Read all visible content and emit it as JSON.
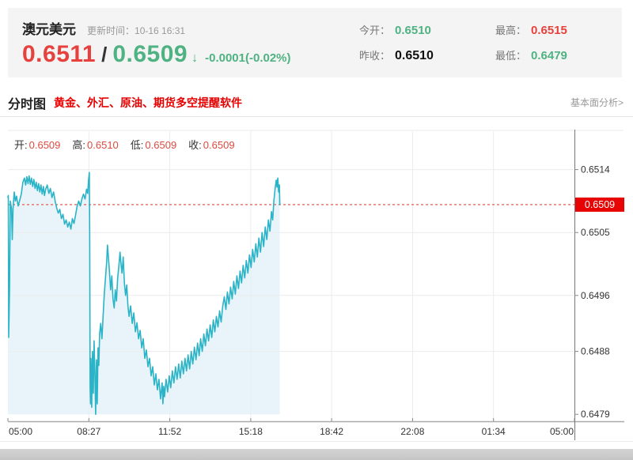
{
  "header": {
    "symbol": "澳元美元",
    "update_label": "更新时间：",
    "update_time": "10-16 16:31",
    "bid": "0.6511",
    "separator": "/",
    "ask": "0.6509",
    "arrow": "↓",
    "change": "-0.0001(-0.02%)",
    "stats": [
      {
        "label": "今开：",
        "value": "0.6510",
        "cls": "green"
      },
      {
        "label": "最高：",
        "value": "0.6515",
        "cls": "red"
      },
      {
        "label": "昨收：",
        "value": "0.6510",
        "cls": "dark"
      },
      {
        "label": "最低：",
        "value": "0.6479",
        "cls": "green"
      }
    ]
  },
  "section": {
    "title": "分时图",
    "promo": "黄金、外汇、原油、期货多空提醒软件",
    "link": "基本面分析>"
  },
  "chart_data": {
    "type": "line",
    "ohlc": {
      "o_label": "开:",
      "o": "0.6509",
      "h_label": "高:",
      "h": "0.6510",
      "l_label": "低:",
      "l": "0.6509",
      "c_label": "收:",
      "c": "0.6509"
    },
    "x_ticks": [
      "05:00",
      "08:27",
      "11:52",
      "15:18",
      "18:42",
      "22:08",
      "01:34",
      "05:00"
    ],
    "y_ticks": [
      0.6514,
      0.6505,
      0.6496,
      0.6488,
      0.6479
    ],
    "current_price": 0.6509,
    "time_span_minutes": 1440,
    "ylim": [
      0.6478,
      0.65195
    ],
    "y_axis_side": "right",
    "grid": true,
    "colors": {
      "line": "#2bb4c7",
      "fill": "#e8f4f9",
      "badge": "#e60404",
      "dashed": "#e85c50",
      "up_green": "#4fb282",
      "down_red": "#e6413d"
    },
    "series": [
      [
        0,
        0.651
      ],
      [
        1,
        0.65103
      ],
      [
        2,
        0.649
      ],
      [
        4,
        0.64965
      ],
      [
        6,
        0.65095
      ],
      [
        9,
        0.65085
      ],
      [
        11,
        0.6504
      ],
      [
        13,
        0.65085
      ],
      [
        16,
        0.65108
      ],
      [
        19,
        0.65095
      ],
      [
        22,
        0.65102
      ],
      [
        26,
        0.65088
      ],
      [
        30,
        0.65096
      ],
      [
        34,
        0.65105
      ],
      [
        38,
        0.65122
      ],
      [
        42,
        0.65128
      ],
      [
        45,
        0.65118
      ],
      [
        48,
        0.6513
      ],
      [
        51,
        0.6512
      ],
      [
        54,
        0.65131
      ],
      [
        57,
        0.65119
      ],
      [
        60,
        0.65128
      ],
      [
        63,
        0.65116
      ],
      [
        66,
        0.65126
      ],
      [
        69,
        0.65113
      ],
      [
        72,
        0.65122
      ],
      [
        75,
        0.6511
      ],
      [
        78,
        0.6512
      ],
      [
        81,
        0.65108
      ],
      [
        84,
        0.65118
      ],
      [
        87,
        0.65105
      ],
      [
        90,
        0.65116
      ],
      [
        93,
        0.65103
      ],
      [
        96,
        0.65112
      ],
      [
        100,
        0.65118
      ],
      [
        104,
        0.65106
      ],
      [
        108,
        0.65113
      ],
      [
        112,
        0.651
      ],
      [
        116,
        0.65108
      ],
      [
        120,
        0.65095
      ],
      [
        124,
        0.65085
      ],
      [
        128,
        0.65078
      ],
      [
        132,
        0.65083
      ],
      [
        136,
        0.6507
      ],
      [
        140,
        0.65076
      ],
      [
        144,
        0.65062
      ],
      [
        148,
        0.65068
      ],
      [
        152,
        0.65058
      ],
      [
        156,
        0.65065
      ],
      [
        160,
        0.65055
      ],
      [
        164,
        0.6507
      ],
      [
        168,
        0.65063
      ],
      [
        172,
        0.65075
      ],
      [
        176,
        0.65088
      ],
      [
        180,
        0.65095
      ],
      [
        184,
        0.65088
      ],
      [
        188,
        0.65098
      ],
      [
        192,
        0.65105
      ],
      [
        196,
        0.65098
      ],
      [
        200,
        0.65112
      ],
      [
        203,
        0.65106
      ],
      [
        205,
        0.65125
      ],
      [
        207,
        0.65136
      ],
      [
        208,
        0.6504
      ],
      [
        209,
        0.6483
      ],
      [
        210,
        0.64805
      ],
      [
        211,
        0.6487
      ],
      [
        213,
        0.648
      ],
      [
        215,
        0.6488
      ],
      [
        217,
        0.6482
      ],
      [
        219,
        0.64895
      ],
      [
        221,
        0.6485
      ],
      [
        223,
        0.6479
      ],
      [
        225,
        0.64868
      ],
      [
        227,
        0.64805
      ],
      [
        229,
        0.64885
      ],
      [
        231,
        0.6486
      ],
      [
        233,
        0.64905
      ],
      [
        236,
        0.6492
      ],
      [
        239,
        0.64898
      ],
      [
        242,
        0.6493
      ],
      [
        245,
        0.64962
      ],
      [
        248,
        0.64985
      ],
      [
        251,
        0.65008
      ],
      [
        253,
        0.65032
      ],
      [
        255,
        0.65018
      ],
      [
        258,
        0.64995
      ],
      [
        261,
        0.64968
      ],
      [
        264,
        0.64988
      ],
      [
        267,
        0.64955
      ],
      [
        270,
        0.64942
      ],
      [
        273,
        0.64968
      ],
      [
        276,
        0.64952
      ],
      [
        279,
        0.64985
      ],
      [
        282,
        0.65002
      ],
      [
        285,
        0.65022
      ],
      [
        287,
        0.65008
      ],
      [
        290,
        0.64992
      ],
      [
        293,
        0.65015
      ],
      [
        296,
        0.64978
      ],
      [
        299,
        0.6496
      ],
      [
        302,
        0.64975
      ],
      [
        305,
        0.64945
      ],
      [
        308,
        0.6493
      ],
      [
        312,
        0.64945
      ],
      [
        316,
        0.6492
      ],
      [
        320,
        0.64935
      ],
      [
        324,
        0.64908
      ],
      [
        328,
        0.64921
      ],
      [
        332,
        0.64898
      ],
      [
        336,
        0.6491
      ],
      [
        340,
        0.64885
      ],
      [
        344,
        0.64898
      ],
      [
        348,
        0.6487
      ],
      [
        352,
        0.64882
      ],
      [
        356,
        0.64858
      ],
      [
        360,
        0.6487
      ],
      [
        364,
        0.64845
      ],
      [
        368,
        0.64858
      ],
      [
        372,
        0.64832
      ],
      [
        376,
        0.64848
      ],
      [
        380,
        0.64825
      ],
      [
        384,
        0.6484
      ],
      [
        388,
        0.64812
      ],
      [
        392,
        0.64835
      ],
      [
        394,
        0.64805
      ],
      [
        396,
        0.6483
      ],
      [
        398,
        0.64815
      ],
      [
        402,
        0.6484
      ],
      [
        406,
        0.64822
      ],
      [
        410,
        0.64845
      ],
      [
        414,
        0.64828
      ],
      [
        418,
        0.64852
      ],
      [
        422,
        0.64835
      ],
      [
        426,
        0.64858
      ],
      [
        430,
        0.6484
      ],
      [
        434,
        0.64862
      ],
      [
        438,
        0.64842
      ],
      [
        442,
        0.64866
      ],
      [
        446,
        0.64848
      ],
      [
        450,
        0.6487
      ],
      [
        454,
        0.64852
      ],
      [
        458,
        0.64875
      ],
      [
        462,
        0.64855
      ],
      [
        466,
        0.6488
      ],
      [
        470,
        0.64862
      ],
      [
        474,
        0.64886
      ],
      [
        478,
        0.64868
      ],
      [
        482,
        0.64892
      ],
      [
        486,
        0.64874
      ],
      [
        490,
        0.64898
      ],
      [
        494,
        0.6488
      ],
      [
        498,
        0.64905
      ],
      [
        502,
        0.64888
      ],
      [
        506,
        0.64912
      ],
      [
        510,
        0.64895
      ],
      [
        514,
        0.64918
      ],
      [
        518,
        0.649
      ],
      [
        522,
        0.64925
      ],
      [
        526,
        0.64908
      ],
      [
        530,
        0.6493
      ],
      [
        534,
        0.64915
      ],
      [
        538,
        0.64938
      ],
      [
        542,
        0.64922
      ],
      [
        546,
        0.64945
      ],
      [
        550,
        0.64958
      ],
      [
        554,
        0.6494
      ],
      [
        558,
        0.64965
      ],
      [
        562,
        0.64948
      ],
      [
        566,
        0.64972
      ],
      [
        570,
        0.64955
      ],
      [
        574,
        0.6498
      ],
      [
        578,
        0.64962
      ],
      [
        582,
        0.64988
      ],
      [
        586,
        0.6497
      ],
      [
        590,
        0.64995
      ],
      [
        594,
        0.64978
      ],
      [
        598,
        0.65003
      ],
      [
        602,
        0.64985
      ],
      [
        606,
        0.6501
      ],
      [
        610,
        0.64992
      ],
      [
        614,
        0.65018
      ],
      [
        618,
        0.65
      ],
      [
        622,
        0.65026
      ],
      [
        626,
        0.65008
      ],
      [
        630,
        0.65034
      ],
      [
        634,
        0.65015
      ],
      [
        638,
        0.65042
      ],
      [
        642,
        0.65022
      ],
      [
        646,
        0.6505
      ],
      [
        650,
        0.6503
      ],
      [
        654,
        0.65058
      ],
      [
        658,
        0.6504
      ],
      [
        662,
        0.65068
      ],
      [
        666,
        0.65052
      ],
      [
        670,
        0.6508
      ],
      [
        673,
        0.65068
      ],
      [
        676,
        0.65095
      ],
      [
        679,
        0.65112
      ],
      [
        682,
        0.65125
      ],
      [
        684,
        0.65115
      ],
      [
        686,
        0.65128
      ],
      [
        688,
        0.65108
      ],
      [
        690,
        0.65118
      ],
      [
        691,
        0.6509
      ]
    ]
  }
}
